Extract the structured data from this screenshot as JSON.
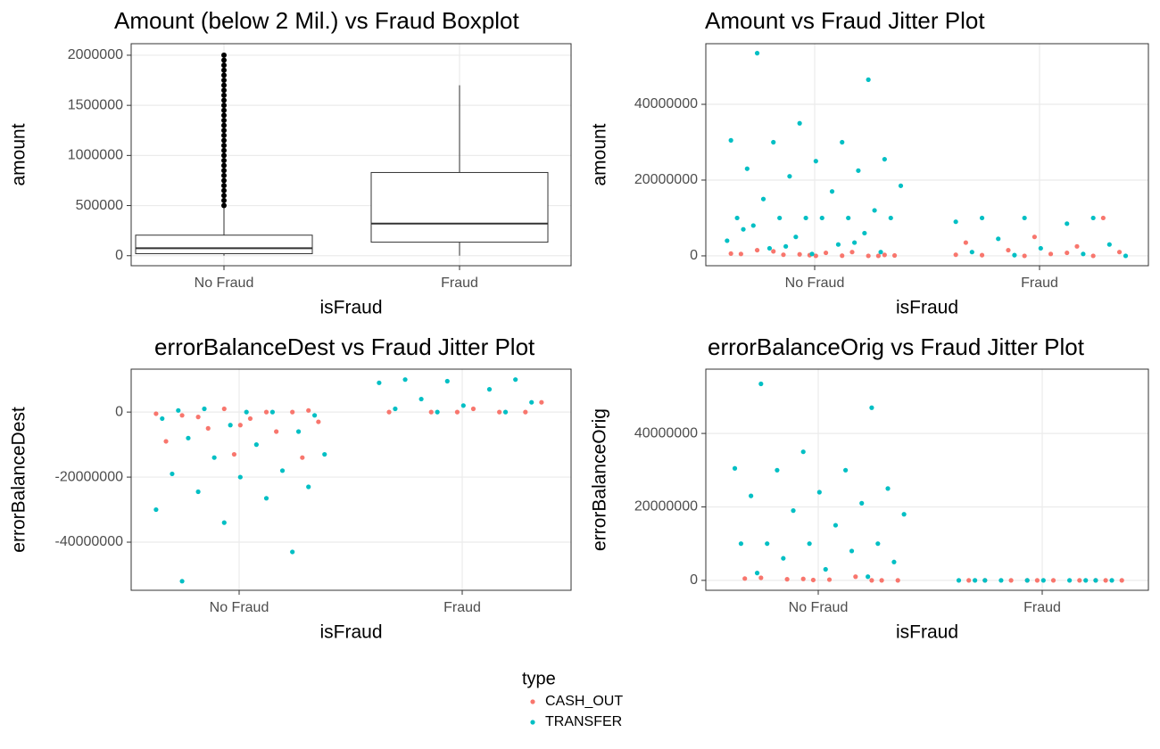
{
  "chart_data": [
    {
      "type": "boxplot",
      "title": "Amount (below 2 Mil.) vs Fraud Boxplot",
      "x_label": "isFraud",
      "y_label": "amount",
      "categories": [
        "No Fraud",
        "Fraud"
      ],
      "boxes": [
        {
          "min": 0,
          "q1": 20000,
          "median": 75000,
          "q3": 205000,
          "max": 480000,
          "outliers": [
            500000,
            550000,
            600000,
            650000,
            700000,
            750000,
            800000,
            850000,
            900000,
            950000,
            1000000,
            1050000,
            1100000,
            1150000,
            1200000,
            1250000,
            1300000,
            1350000,
            1400000,
            1450000,
            1500000,
            1550000,
            1600000,
            1650000,
            1700000,
            1750000,
            1800000,
            1850000,
            1900000,
            1950000,
            2000000
          ]
        },
        {
          "min": 0,
          "q1": 135000,
          "median": 320000,
          "q3": 830000,
          "max": 1700000,
          "outliers": []
        }
      ],
      "ylim": [
        -100000,
        2115000
      ],
      "yticks": [
        0,
        500000,
        1000000,
        1500000,
        2000000
      ],
      "grid": true
    },
    {
      "type": "jitter",
      "title": "Amount vs Fraud Jitter Plot",
      "x_label": "isFraud",
      "y_label": "amount",
      "categories": [
        "No Fraud",
        "Fraud"
      ],
      "series": [
        {
          "name": "CASH_OUT",
          "color": "#f8766d",
          "values": [
            [
              0,
              200000,
              500000,
              1000000,
              300000,
              100000,
              800000,
              1500000,
              0,
              400000,
              600000,
              50000,
              1200000,
              250000,
              0
            ],
            [
              10000000,
              5000000,
              3500000,
              2500000,
              1500000,
              1000000,
              500000,
              200000,
              0,
              0,
              300000,
              800000
            ]
          ]
        },
        {
          "name": "TRANSFER",
          "color": "#00bfc4",
          "values": [
            [
              53500000,
              46500000,
              35000000,
              30500000,
              30000000,
              30000000,
              25500000,
              25000000,
              23000000,
              22500000,
              21000000,
              18500000,
              17000000,
              15000000,
              12000000,
              10000000,
              10000000,
              10000000,
              10000000,
              10000000,
              10000000,
              8000000,
              6000000,
              5000000,
              4000000,
              3000000,
              2000000,
              1000000,
              500000,
              7000000,
              3500000,
              2500000
            ],
            [
              10000000,
              10000000,
              10000000,
              9000000,
              8500000,
              4500000,
              3000000,
              2000000,
              1000000,
              500000,
              200000,
              0
            ]
          ]
        }
      ],
      "ylim": [
        -2600000,
        56000000
      ],
      "yticks": [
        0,
        20000000,
        40000000
      ],
      "grid": true
    },
    {
      "type": "jitter",
      "title": "errorBalanceDest vs Fraud Jitter Plot",
      "x_label": "isFraud",
      "y_label": "errorBalanceDest",
      "categories": [
        "No Fraud",
        "Fraud"
      ],
      "series": [
        {
          "name": "CASH_OUT",
          "color": "#f8766d",
          "values": [
            [
              -14000000,
              -13000000,
              -9000000,
              -6000000,
              -5000000,
              -3000000,
              -2000000,
              -1000000,
              0,
              1000000,
              -500000,
              0,
              -1500000,
              500000,
              -4000000
            ],
            [
              0,
              0,
              0,
              0,
              0,
              3000000,
              1000000
            ]
          ]
        },
        {
          "name": "TRANSFER",
          "color": "#00bfc4",
          "values": [
            [
              -52000000,
              -43000000,
              -34000000,
              -30000000,
              -26500000,
              -24500000,
              -23000000,
              -20000000,
              -19000000,
              -18000000,
              -14000000,
              -13000000,
              -10000000,
              -8000000,
              -6000000,
              -4000000,
              -2000000,
              0,
              1000000,
              -1000000,
              0,
              500000
            ],
            [
              10000000,
              10000000,
              9500000,
              9000000,
              7000000,
              4000000,
              3000000,
              2000000,
              1000000,
              0,
              0
            ]
          ]
        }
      ],
      "ylim": [
        -54800000,
        13200000
      ],
      "yticks": [
        -40000000,
        -20000000,
        0
      ],
      "grid": true
    },
    {
      "type": "jitter",
      "title": "errorBalanceOrig vs Fraud Jitter Plot",
      "x_label": "isFraud",
      "y_label": "errorBalanceOrig",
      "categories": [
        "No Fraud",
        "Fraud"
      ],
      "series": [
        {
          "name": "CASH_OUT",
          "color": "#f8766d",
          "values": [
            [
              0,
              100000,
              500000,
              1000000,
              300000,
              0,
              200000,
              700000,
              0,
              400000
            ],
            [
              0,
              0,
              0,
              0,
              0,
              0,
              0,
              0,
              0,
              0
            ]
          ]
        },
        {
          "name": "TRANSFER",
          "color": "#00bfc4",
          "values": [
            [
              53500000,
              47000000,
              35000000,
              30500000,
              30000000,
              30000000,
              25000000,
              24000000,
              23000000,
              21000000,
              19000000,
              18000000,
              15000000,
              10000000,
              10000000,
              10000000,
              10000000,
              8000000,
              6000000,
              5000000,
              3000000,
              2000000,
              1000000
            ],
            [
              0,
              0,
              0,
              0,
              0,
              0,
              0,
              0,
              0,
              0
            ]
          ]
        }
      ],
      "ylim": [
        -2700000,
        57500000
      ],
      "yticks": [
        0,
        20000000,
        40000000
      ],
      "grid": true
    }
  ],
  "legend": {
    "title": "type"
  }
}
